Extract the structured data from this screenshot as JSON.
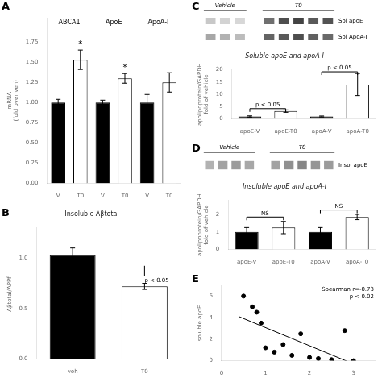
{
  "chart_data": [
    {
      "type": "bar",
      "panel": "A",
      "categories": [
        "V",
        "T0",
        "V",
        "T0",
        "V",
        "T0"
      ],
      "groups": [
        "ABCA1",
        "ApoE",
        "ApoA-I"
      ],
      "values": [
        1.0,
        1.53,
        1.0,
        1.3,
        1.0,
        1.25
      ],
      "errors": [
        0.04,
        0.12,
        0.03,
        0.06,
        0.1,
        0.12
      ],
      "colors": [
        "black",
        "white",
        "black",
        "white",
        "black",
        "white"
      ],
      "ylabel": "mRNA\n(fold over veh)",
      "ylim": [
        0,
        2.05
      ],
      "yticks": [
        {
          "value": 0.0,
          "label": "0.00"
        },
        {
          "value": 0.25,
          "label": "0.25"
        },
        {
          "value": 0.5,
          "label": "0.50"
        },
        {
          "value": 0.75,
          "label": "0.75"
        },
        {
          "value": 1.0,
          "label": "1.00"
        },
        {
          "value": 1.25,
          "label": "1.25"
        },
        {
          "value": 1.5,
          "label": "1.50"
        },
        {
          "value": 1.75,
          "label": "1.75"
        }
      ],
      "annotations": [
        {
          "text": "*",
          "index": 1
        },
        {
          "text": "*",
          "index": 3
        }
      ],
      "grid": false
    },
    {
      "type": "bar",
      "panel": "B",
      "title": "Insoluble Aβtotal",
      "categories": [
        "veh",
        "T0"
      ],
      "values": [
        1.03,
        0.72
      ],
      "errors": [
        0.07,
        0.03
      ],
      "colors": [
        "black",
        "white"
      ],
      "ylabel": "Aβtotal/APPfl",
      "ylim": [
        0,
        1.3
      ],
      "yticks": [
        {
          "value": 0.0,
          "label": "0.0"
        },
        {
          "value": 0.5,
          "label": "0.5"
        },
        {
          "value": 1.0,
          "label": "1.0"
        }
      ],
      "annotations": [
        {
          "text": "p < 0.05",
          "category": "T0",
          "y": 0.78
        }
      ],
      "grid": false
    },
    {
      "type": "blot",
      "panel": "C",
      "groups": [
        "Vehicle",
        "T0"
      ],
      "rows": [
        "Sol apoE",
        "Sol ApoA-I"
      ],
      "cells": [
        [
          [
            0.25,
            0.2,
            0.18
          ],
          [
            0.65,
            0.8,
            0.85,
            0.75,
            0.78
          ]
        ],
        [
          [
            0.4,
            0.35,
            0.3
          ],
          [
            0.7,
            0.75,
            0.8,
            0.72,
            0.68
          ]
        ]
      ]
    },
    {
      "type": "bar",
      "title": "Soluble apoE and apoA-I",
      "categories": [
        "apoE-V",
        "apoE-T0",
        "apoA-V",
        "apoA-T0"
      ],
      "values": [
        1.0,
        3.2,
        1.0,
        14.0
      ],
      "errors": [
        0.25,
        0.5,
        0.2,
        4.5
      ],
      "colors": [
        "black",
        "white",
        "black",
        "white"
      ],
      "ylabel": "apolipoprotein/GAPDH\nfold of vehicle",
      "ylim": [
        0,
        20
      ],
      "yticks": [
        0,
        5,
        10,
        15,
        20
      ],
      "annotations": [
        {
          "text": "p < 0.05",
          "from": "apoE-V",
          "to": "apoE-T0",
          "y": 4.2
        },
        {
          "text": "p < 0.05",
          "from": "apoA-V",
          "to": "apoA-T0",
          "y": 19.2
        }
      ],
      "grid": false
    },
    {
      "type": "blot",
      "panel": "D",
      "groups": [
        "Vehicle",
        "T0"
      ],
      "rows": [
        "Insol apoE"
      ],
      "cells": [
        [
          [
            0.35,
            0.42,
            0.45,
            0.4
          ],
          [
            0.42,
            0.5,
            0.55,
            0.48,
            0.45
          ]
        ]
      ]
    },
    {
      "type": "bar",
      "title": "Insoluble apoE and apoA-I",
      "categories": [
        "apoE-V",
        "apoE-T0",
        "apoA-V",
        "apoA-T0"
      ],
      "values": [
        1.0,
        1.25,
        1.0,
        1.85
      ],
      "errors": [
        0.25,
        0.35,
        0.25,
        0.15
      ],
      "colors": [
        "black",
        "white",
        "black",
        "white"
      ],
      "ylabel": "apolipoprotein/GAPDH\nfold of vehicle",
      "ylim": [
        0,
        2.8
      ],
      "yticks": [
        0,
        1,
        2
      ],
      "annotations": [
        {
          "text": "NS",
          "from": "apoE-V",
          "to": "apoE-T0",
          "y": 1.85
        },
        {
          "text": "NS",
          "from": "apoA-V",
          "to": "apoA-T0",
          "y": 2.25
        }
      ],
      "grid": false
    },
    {
      "type": "scatter",
      "panel": "E",
      "ylabel": "soluble apoE",
      "x": [
        0.5,
        0.7,
        0.8,
        0.9,
        1.0,
        1.2,
        1.4,
        1.6,
        1.8,
        2.0,
        2.2,
        2.5,
        2.8,
        3.0
      ],
      "y": [
        6.0,
        5.0,
        4.5,
        3.5,
        1.2,
        0.8,
        1.5,
        0.5,
        2.5,
        0.3,
        0.2,
        0.1,
        2.8,
        0.0
      ],
      "color": "black",
      "fit": {
        "x": [
          0.4,
          3.1
        ],
        "y": [
          4.0879,
          -0.4652
        ]
      },
      "annotation": "Spearman r=-0.73\np < 0.02",
      "xlim": [
        0,
        3.5
      ],
      "ylim": [
        0,
        7
      ],
      "xticks": [
        0,
        1,
        2,
        3
      ],
      "yticks": [
        0,
        2,
        4,
        6
      ],
      "grid": false
    }
  ]
}
